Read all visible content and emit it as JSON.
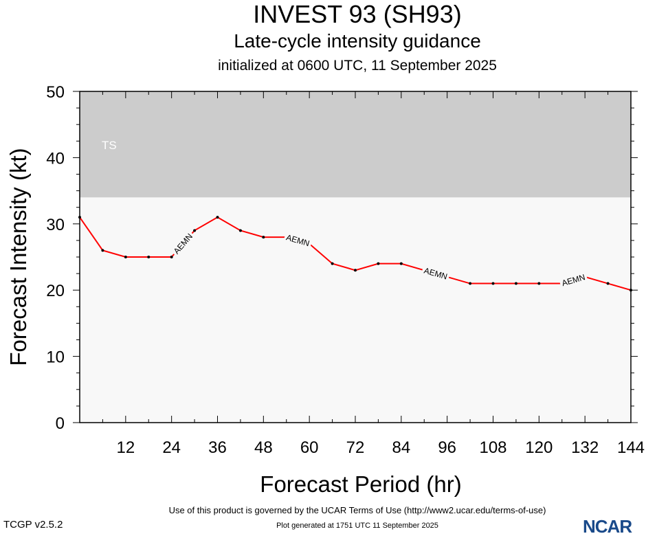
{
  "header": {
    "title": "INVEST 93 (SH93)",
    "subtitle": "Late-cycle intensity guidance",
    "initialized": "initialized at 0600 UTC, 11 September 2025"
  },
  "footer": {
    "terms": "Use of this product is governed by the UCAR Terms of Use (http://www2.ucar.edu/terms-of-use)",
    "generated": "Plot generated at 1751 UTC   11 September 2025",
    "version": "TCGP v2.5.2",
    "logo": "NCAR"
  },
  "chart_data": {
    "type": "line",
    "xlabel": "Forecast Period (hr)",
    "ylabel": "Forecast Intensity (kt)",
    "xlim": [
      0,
      144
    ],
    "ylim": [
      0,
      50
    ],
    "xticks": [
      12,
      24,
      36,
      48,
      60,
      72,
      84,
      96,
      108,
      120,
      132,
      144
    ],
    "yticks": [
      0,
      10,
      20,
      30,
      40,
      50
    ],
    "bands": [
      {
        "label": "TS",
        "from": 34,
        "to": 50,
        "color": "#cccccc"
      }
    ],
    "background": "#f8f8f8",
    "series": [
      {
        "name": "AEMN",
        "color": "#ff0000",
        "x": [
          0,
          6,
          12,
          18,
          24,
          30,
          36,
          42,
          48,
          54,
          60,
          66,
          72,
          78,
          84,
          90,
          96,
          102,
          108,
          114,
          120,
          126,
          132,
          138,
          144
        ],
        "y": [
          31,
          26,
          25,
          25,
          25,
          29,
          31,
          29,
          28,
          28,
          27,
          24,
          23,
          24,
          24,
          23,
          22,
          21,
          21,
          21,
          21,
          21,
          22,
          21,
          20
        ],
        "label_at": [
          24,
          54,
          90,
          126
        ]
      }
    ]
  }
}
